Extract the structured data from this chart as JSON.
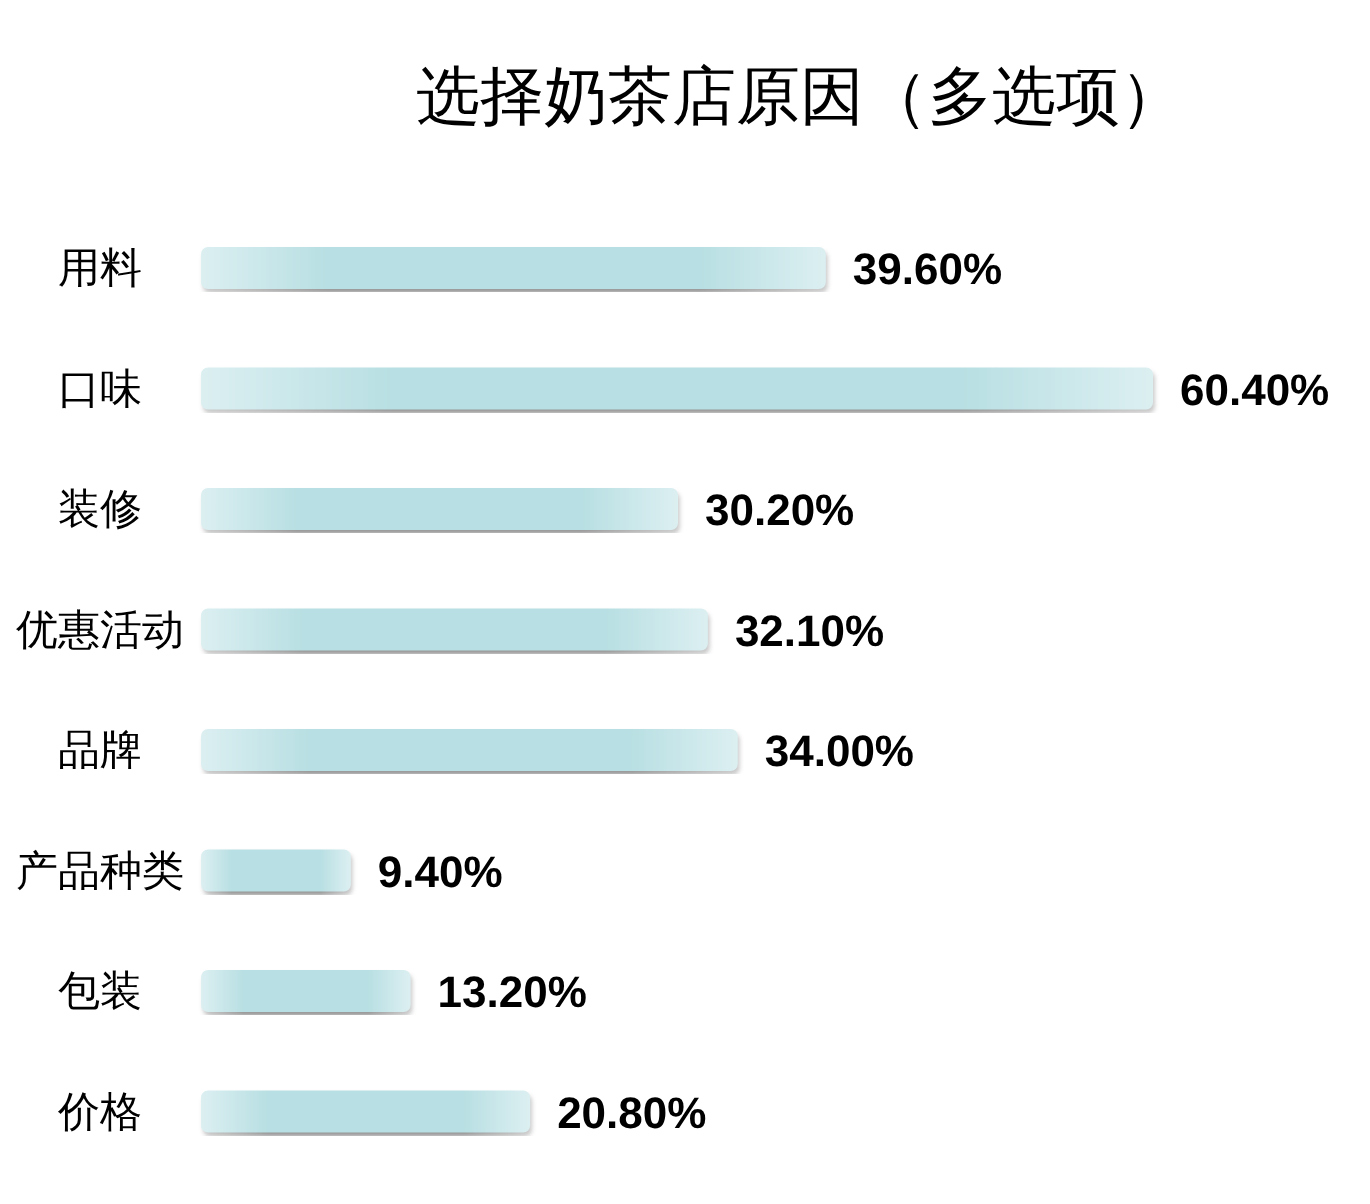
{
  "chart_data": {
    "type": "bar",
    "orientation": "horizontal",
    "title": "选择奶茶店原因（多选项）",
    "categories": [
      "用料",
      "口味",
      "装修",
      "优惠活动",
      "品牌",
      "产品种类",
      "包装",
      "价格"
    ],
    "values": [
      39.6,
      60.4,
      30.2,
      32.1,
      34.0,
      9.4,
      13.2,
      20.8
    ],
    "value_labels": [
      "39.60%",
      "60.40%",
      "30.20%",
      "32.10%",
      "34.00%",
      "9.40%",
      "13.20%",
      "20.80%"
    ],
    "color": "#b8dfe3",
    "tick_labels": "y"
  }
}
